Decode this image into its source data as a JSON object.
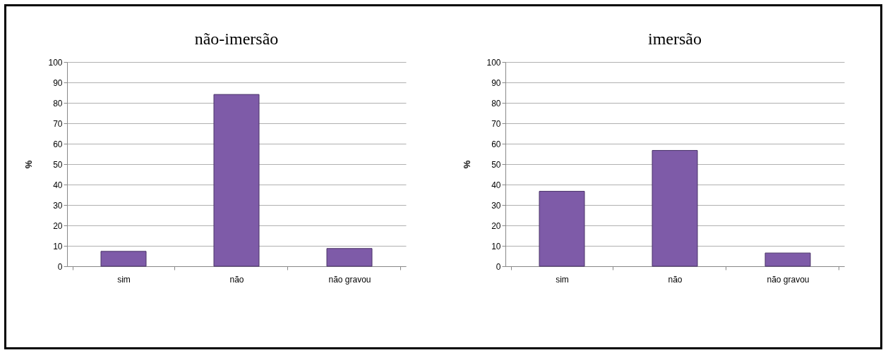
{
  "chart_data": [
    {
      "type": "bar",
      "title": "não-imersão",
      "ylabel": "%",
      "categories": [
        "sim",
        "não",
        "não gravou"
      ],
      "values": [
        7.3,
        84.1,
        8.7
      ],
      "color": "#7e5ba8",
      "ylim": [
        0,
        100
      ],
      "yticks": [
        0,
        10,
        20,
        30,
        40,
        50,
        60,
        70,
        80,
        90,
        100
      ],
      "grid": "y"
    },
    {
      "type": "bar",
      "title": "imersão",
      "ylabel": "%",
      "categories": [
        "sim",
        "não",
        "não gravou"
      ],
      "values": [
        36.7,
        56.7,
        6.5
      ],
      "color": "#7e5ba8",
      "ylim": [
        0,
        100
      ],
      "yticks": [
        0,
        10,
        20,
        30,
        40,
        50,
        60,
        70,
        80,
        90,
        100
      ],
      "grid": "y"
    }
  ]
}
